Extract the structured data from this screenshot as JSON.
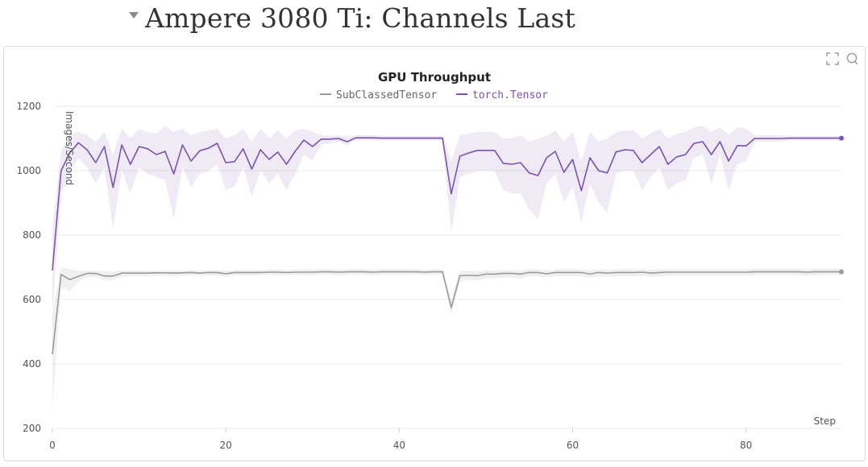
{
  "section": {
    "title": "Ampere 3080 Ti: Channels Last"
  },
  "panel": {
    "icons": [
      "expand-icon",
      "comment-icon"
    ]
  },
  "chart_data": {
    "type": "line",
    "title": "GPU Throughput",
    "xlabel": "Step",
    "ylabel": "Images/Second",
    "xlim": [
      0,
      91
    ],
    "ylim": [
      200,
      1200
    ],
    "xticks": [
      0,
      20,
      40,
      60,
      80
    ],
    "yticks": [
      200,
      400,
      600,
      800,
      1000,
      1200
    ],
    "grid": true,
    "legend_position": "top",
    "x": [
      0,
      1,
      2,
      3,
      4,
      5,
      6,
      7,
      8,
      9,
      10,
      11,
      12,
      13,
      14,
      15,
      16,
      17,
      18,
      19,
      20,
      21,
      22,
      23,
      24,
      25,
      26,
      27,
      28,
      29,
      30,
      31,
      32,
      33,
      34,
      35,
      36,
      37,
      38,
      39,
      40,
      41,
      42,
      43,
      44,
      45,
      46,
      47,
      48,
      49,
      50,
      51,
      52,
      53,
      54,
      55,
      56,
      57,
      58,
      59,
      60,
      61,
      62,
      63,
      64,
      65,
      66,
      67,
      68,
      69,
      70,
      71,
      72,
      73,
      74,
      75,
      76,
      77,
      78,
      79,
      80,
      81,
      82,
      83,
      84,
      85,
      86,
      87,
      88,
      89,
      90,
      91
    ],
    "series": [
      {
        "name": "SubClassedTensor",
        "color": "#9a9a9a",
        "values": [
          430,
          678,
          662,
          672,
          681,
          681,
          673,
          673,
          682,
          682,
          682,
          682,
          683,
          683,
          682,
          683,
          684,
          682,
          684,
          684,
          680,
          684,
          684,
          684,
          684,
          685,
          685,
          684,
          685,
          685,
          685,
          686,
          686,
          685,
          686,
          686,
          686,
          685,
          686,
          686,
          686,
          686,
          686,
          685,
          686,
          686,
          575,
          674,
          675,
          674,
          679,
          679,
          681,
          681,
          679,
          684,
          684,
          680,
          684,
          684,
          684,
          684,
          679,
          684,
          682,
          684,
          684,
          684,
          685,
          682,
          684,
          685,
          685,
          685,
          685,
          685,
          685,
          685,
          685,
          685,
          685,
          686,
          686,
          686,
          686,
          686,
          686,
          685,
          686,
          686,
          686,
          686
        ],
        "band_low": [
          260,
          640,
          625,
          655,
          670,
          670,
          660,
          660,
          670,
          672,
          672,
          672,
          674,
          674,
          672,
          674,
          675,
          673,
          675,
          675,
          670,
          675,
          675,
          675,
          675,
          676,
          676,
          676,
          676,
          676,
          676,
          677,
          677,
          676,
          677,
          677,
          677,
          676,
          677,
          677,
          677,
          677,
          677,
          676,
          677,
          677,
          555,
          655,
          660,
          660,
          665,
          665,
          668,
          668,
          665,
          672,
          672,
          668,
          672,
          672,
          672,
          672,
          668,
          672,
          670,
          672,
          672,
          672,
          674,
          670,
          672,
          674,
          674,
          674,
          674,
          674,
          674,
          674,
          674,
          674,
          674,
          676,
          676,
          676,
          676,
          676,
          676,
          674,
          676,
          676,
          676,
          676
        ],
        "band_high": [
          560,
          700,
          695,
          690,
          690,
          690,
          688,
          688,
          690,
          690,
          690,
          690,
          690,
          690,
          690,
          690,
          692,
          690,
          692,
          692,
          690,
          692,
          692,
          692,
          692,
          693,
          693,
          692,
          693,
          693,
          693,
          694,
          694,
          693,
          694,
          694,
          694,
          693,
          694,
          694,
          694,
          694,
          694,
          693,
          694,
          694,
          600,
          690,
          688,
          688,
          690,
          690,
          692,
          692,
          690,
          694,
          694,
          690,
          694,
          694,
          694,
          694,
          690,
          694,
          692,
          694,
          694,
          694,
          695,
          692,
          694,
          695,
          695,
          695,
          695,
          695,
          695,
          695,
          695,
          695,
          695,
          696,
          696,
          696,
          696,
          696,
          696,
          695,
          696,
          696,
          696,
          696
        ]
      },
      {
        "name": "torch.Tensor",
        "color": "#7b52b0",
        "values": [
          690,
          1000,
          1055,
          1087,
          1065,
          1025,
          1075,
          948,
          1080,
          1020,
          1075,
          1068,
          1050,
          1060,
          990,
          1080,
          1030,
          1062,
          1070,
          1085,
          1025,
          1028,
          1068,
          1005,
          1065,
          1035,
          1058,
          1020,
          1060,
          1095,
          1075,
          1098,
          1098,
          1100,
          1090,
          1102,
          1102,
          1102,
          1101,
          1101,
          1101,
          1101,
          1101,
          1101,
          1101,
          1101,
          928,
          1045,
          1055,
          1063,
          1063,
          1063,
          1023,
          1020,
          1025,
          993,
          985,
          1040,
          1060,
          995,
          1035,
          938,
          1040,
          1000,
          993,
          1058,
          1065,
          1063,
          1025,
          1050,
          1075,
          1020,
          1043,
          1050,
          1085,
          1090,
          1050,
          1090,
          1030,
          1078,
          1077,
          1100,
          1100,
          1100,
          1100,
          1101,
          1101,
          1101,
          1101,
          1101,
          1101,
          1101
        ],
        "band_low": [
          560,
          930,
          990,
          1040,
          1010,
          960,
          1010,
          820,
          1000,
          930,
          1010,
          990,
          980,
          970,
          850,
          1010,
          950,
          990,
          1000,
          1020,
          940,
          950,
          1010,
          920,
          1000,
          960,
          990,
          940,
          990,
          1050,
          1030,
          1080,
          1085,
          1090,
          1080,
          1095,
          1095,
          1095,
          1094,
          1094,
          1094,
          1094,
          1094,
          1094,
          1094,
          1094,
          810,
          980,
          990,
          1000,
          1000,
          1000,
          940,
          930,
          930,
          880,
          850,
          960,
          990,
          900,
          950,
          840,
          960,
          900,
          870,
          990,
          1000,
          1000,
          940,
          980,
          1010,
          940,
          960,
          970,
          1040,
          1050,
          960,
          1050,
          940,
          1020,
          1030,
          1090,
          1090,
          1090,
          1090,
          1094,
          1094,
          1094,
          1094,
          1094,
          1094,
          1094
        ],
        "band_high": [
          820,
          1060,
          1110,
          1120,
          1110,
          1090,
          1120,
          1050,
          1130,
          1100,
          1130,
          1120,
          1115,
          1140,
          1120,
          1130,
          1110,
          1120,
          1125,
          1130,
          1100,
          1110,
          1130,
          1090,
          1130,
          1100,
          1125,
          1100,
          1125,
          1130,
          1120,
          1110,
          1108,
          1110,
          1105,
          1110,
          1110,
          1110,
          1108,
          1108,
          1108,
          1108,
          1108,
          1108,
          1108,
          1108,
          1030,
          1110,
          1115,
          1120,
          1120,
          1120,
          1100,
          1100,
          1110,
          1090,
          1100,
          1110,
          1125,
          1090,
          1120,
          1030,
          1120,
          1090,
          1100,
          1120,
          1125,
          1125,
          1100,
          1115,
          1130,
          1100,
          1115,
          1120,
          1135,
          1140,
          1120,
          1135,
          1110,
          1135,
          1130,
          1110,
          1110,
          1110,
          1110,
          1108,
          1108,
          1108,
          1108,
          1108,
          1108,
          1108
        ]
      }
    ]
  }
}
